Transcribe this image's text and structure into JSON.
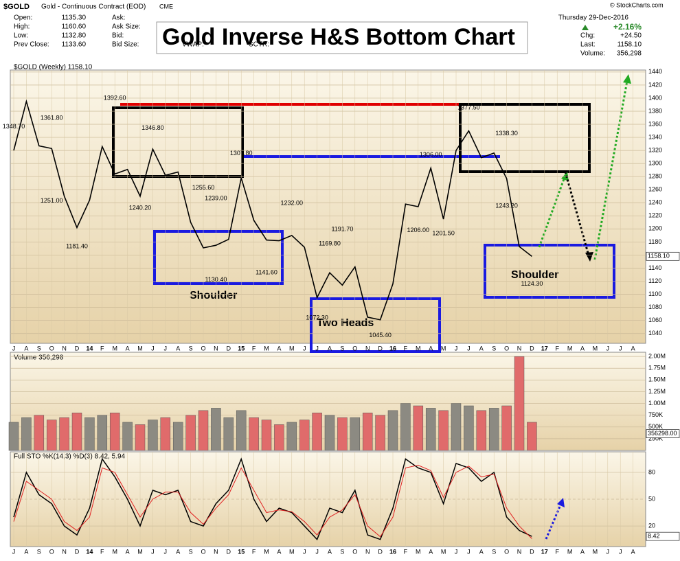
{
  "header": {
    "symbol": "$GOLD",
    "description": "Gold - Continuous Contract (EOD)",
    "exchange": "CME",
    "copyright": "© StockCharts.com",
    "fields": [
      {
        "label": "Open:",
        "value": "1135.30"
      },
      {
        "label": "High:",
        "value": "1160.60"
      },
      {
        "label": "Low:",
        "value": "1132.80"
      },
      {
        "label": "Prev Close:",
        "value": "1133.60"
      }
    ],
    "quote_fields": [
      "Ask:",
      "Ask Size:",
      "Bid:",
      "Bid Size:"
    ],
    "extra_fields": [
      "VWAP:",
      "SCTR:"
    ],
    "date": "Thursday  29-Dec-2016",
    "change_pct": "+2.16%",
    "right_fields": [
      {
        "label": "Chg:",
        "value": "+24.50"
      },
      {
        "label": "Last:",
        "value": "1158.10"
      },
      {
        "label": "Volume:",
        "value": "356,298"
      }
    ],
    "title": "Gold Inverse H&S Bottom Chart"
  },
  "chart_data": [
    {
      "type": "line",
      "title": "$GOLD (Weekly) 1158.10",
      "color": "#000000",
      "last_label": "1158.10",
      "last_value": 1158.1,
      "categories": [
        "J",
        "A",
        "S",
        "O",
        "N",
        "D",
        "14",
        "F",
        "M",
        "A",
        "M",
        "J",
        "J",
        "A",
        "S",
        "O",
        "N",
        "D",
        "15",
        "F",
        "M",
        "A",
        "M",
        "J",
        "J",
        "A",
        "S",
        "O",
        "N",
        "D",
        "16",
        "F",
        "M",
        "A",
        "M",
        "J",
        "J",
        "A",
        "S",
        "O",
        "N",
        "D",
        "17",
        "F",
        "M",
        "A",
        "M",
        "J",
        "J",
        "A"
      ],
      "values": [
        1320,
        1395,
        1327,
        1323,
        1250,
        1202,
        1244,
        1326,
        1284,
        1291,
        1250,
        1322,
        1282,
        1287,
        1210,
        1171,
        1175,
        1184,
        1278,
        1213,
        1183,
        1182,
        1190,
        1172,
        1095,
        1133,
        1114,
        1142,
        1065,
        1061,
        1116,
        1238,
        1234,
        1293,
        1215,
        1320,
        1350,
        1309,
        1316,
        1277,
        1173,
        1158,
        null,
        null,
        null,
        null,
        null,
        null,
        null,
        null
      ],
      "ylim": [
        1025,
        1443
      ],
      "yticks": [
        1040,
        1060,
        1080,
        1100,
        1120,
        1140,
        1160,
        1180,
        1200,
        1220,
        1240,
        1260,
        1280,
        1300,
        1320,
        1340,
        1360,
        1380,
        1400,
        1420,
        1440
      ],
      "grid": true,
      "annotations": [
        {
          "x": 0,
          "value": 1348.7,
          "label": "1348.70"
        },
        {
          "x": 3,
          "value": 1361.8,
          "label": "1361.80"
        },
        {
          "x": 3,
          "value": 1251,
          "label": "1251.00"
        },
        {
          "x": 5,
          "value": 1181.4,
          "label": "1181.40"
        },
        {
          "x": 8,
          "value": 1392.6,
          "label": "1392.60"
        },
        {
          "x": 11,
          "value": 1346.8,
          "label": "1346.80"
        },
        {
          "x": 10,
          "value": 1240.2,
          "label": "1240.20"
        },
        {
          "x": 15,
          "value": 1255.6,
          "label": "1255.60"
        },
        {
          "x": 16,
          "value": 1239,
          "label": "1239.00"
        },
        {
          "x": 16,
          "value": 1130.4,
          "label": "1130.40"
        },
        {
          "x": 18,
          "value": 1307.8,
          "label": "1307.80"
        },
        {
          "x": 20,
          "value": 1141.6,
          "label": "1141.60"
        },
        {
          "x": 22,
          "value": 1232,
          "label": "1232.00"
        },
        {
          "x": 26,
          "value": 1191.7,
          "label": "1191.70"
        },
        {
          "x": 25,
          "value": 1169.8,
          "label": "1169.80"
        },
        {
          "x": 24,
          "value": 1072.3,
          "label": "1072.30"
        },
        {
          "x": 29,
          "value": 1045.4,
          "label": "1045.40"
        },
        {
          "x": 33,
          "value": 1306,
          "label": "1306.00"
        },
        {
          "x": 32,
          "value": 1206,
          "label": "1206.00"
        },
        {
          "x": 34,
          "value": 1201.5,
          "label": "1201.50"
        },
        {
          "x": 36,
          "value": 1377.5,
          "label": "1377.50"
        },
        {
          "x": 39,
          "value": 1338.3,
          "label": "1338.30"
        },
        {
          "x": 39,
          "value": 1243.2,
          "label": "1243.20"
        },
        {
          "x": 41,
          "value": 1124.3,
          "label": "1124.30"
        }
      ],
      "notes": [
        "Shoulder",
        "Two Heads",
        "Shoulder"
      ]
    },
    {
      "type": "bar",
      "title": "Volume 356,298",
      "up_color": "#8c8a82",
      "down_color": "#e06b6b",
      "last_label": "356298.00",
      "last_value": 356298,
      "values": [
        600000,
        700000,
        750000,
        650000,
        700000,
        800000,
        700000,
        750000,
        800000,
        600000,
        550000,
        650000,
        700000,
        600000,
        750000,
        850000,
        900000,
        700000,
        850000,
        700000,
        650000,
        550000,
        600000,
        650000,
        800000,
        750000,
        700000,
        700000,
        800000,
        750000,
        850000,
        1000000,
        950000,
        900000,
        850000,
        1000000,
        950000,
        850000,
        900000,
        950000,
        2000000,
        600000,
        null,
        null,
        null,
        null,
        null,
        null,
        null,
        null
      ],
      "ylim": [
        0,
        2090000
      ],
      "yticks": [
        {
          "value": 250000,
          "label": "250K"
        },
        {
          "value": 500000,
          "label": "500K"
        },
        {
          "value": 750000,
          "label": "750K"
        },
        {
          "value": 1000000,
          "label": "1.00M"
        },
        {
          "value": 1250000,
          "label": "1.25M"
        },
        {
          "value": 1500000,
          "label": "1.50M"
        },
        {
          "value": 1750000,
          "label": "1.75M"
        },
        {
          "value": 2000000,
          "label": "2.00M"
        }
      ]
    },
    {
      "type": "line",
      "title": "Full STO %K(14,3) %D(3) 8.42, 5.94",
      "categories": [
        "J",
        "A",
        "S",
        "O",
        "N",
        "D",
        "14",
        "F",
        "M",
        "A",
        "M",
        "J",
        "J",
        "A",
        "S",
        "O",
        "N",
        "D",
        "15",
        "F",
        "M",
        "A",
        "M",
        "J",
        "J",
        "A",
        "S",
        "O",
        "N",
        "D",
        "16",
        "F",
        "M",
        "A",
        "M",
        "J",
        "J",
        "A",
        "S",
        "O",
        "N",
        "D",
        "17",
        "F",
        "M",
        "A",
        "M",
        "J",
        "J",
        "A"
      ],
      "series": [
        {
          "name": "%K",
          "color": "#000000",
          "values": [
            30,
            80,
            55,
            45,
            20,
            10,
            40,
            95,
            75,
            50,
            20,
            60,
            55,
            60,
            25,
            20,
            45,
            60,
            95,
            50,
            25,
            40,
            35,
            20,
            5,
            40,
            35,
            60,
            10,
            5,
            40,
            95,
            85,
            80,
            45,
            90,
            85,
            70,
            80,
            30,
            15,
            8.42,
            null,
            null,
            null,
            null,
            null,
            null,
            null,
            null
          ]
        },
        {
          "name": "%D",
          "color": "#e02020",
          "values": [
            25,
            70,
            60,
            50,
            25,
            15,
            30,
            85,
            80,
            55,
            30,
            50,
            58,
            58,
            35,
            22,
            40,
            55,
            85,
            60,
            35,
            38,
            36,
            25,
            10,
            30,
            38,
            55,
            20,
            8,
            30,
            85,
            88,
            82,
            52,
            80,
            87,
            75,
            78,
            40,
            20,
            5.94,
            null,
            null,
            null,
            null,
            null,
            null,
            null,
            null
          ]
        }
      ],
      "ylim": [
        -3,
        103
      ],
      "yticks": [
        20,
        50,
        80
      ],
      "last_label": "8.42",
      "last_value": 8.42
    }
  ]
}
